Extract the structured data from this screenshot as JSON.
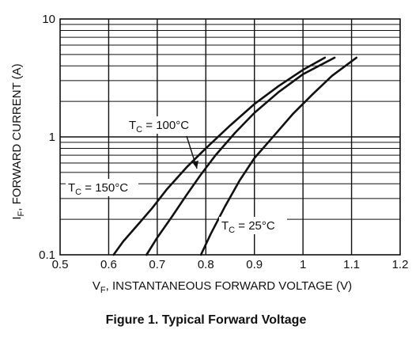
{
  "chart_data": {
    "type": "line",
    "title": "Figure 1. Typical Forward Voltage",
    "xlabel": {
      "symbol": "V",
      "sub": "F",
      "text": ", INSTANTANEOUS FORWARD VOLTAGE (V)"
    },
    "ylabel": {
      "symbol": "I",
      "sub": "F",
      "text": ", FORWARD CURRENT (A)"
    },
    "x_ticks": [
      "0.5",
      "0.6",
      "0.7",
      "0.8",
      "0.9",
      "1",
      "1.1",
      "1.2"
    ],
    "y_ticks": [
      "0.1",
      "1",
      "10"
    ],
    "xlim": [
      0.5,
      1.2
    ],
    "ylim": [
      0.1,
      10
    ],
    "y_scale": "log",
    "grid": true,
    "series": [
      {
        "name": "T_C = 150°C",
        "label": {
          "symbol": "T",
          "sub": "C",
          "text": " = 150°C"
        },
        "x": [
          0.61,
          0.63,
          0.66,
          0.69,
          0.72,
          0.76,
          0.8,
          0.85,
          0.9,
          0.95,
          1.0,
          1.045
        ],
        "y": [
          0.1,
          0.13,
          0.18,
          0.25,
          0.36,
          0.55,
          0.8,
          1.25,
          1.9,
          2.7,
          3.7,
          4.7
        ]
      },
      {
        "name": "T_C = 100°C",
        "label": {
          "symbol": "T",
          "sub": "C",
          "text": " = 100°C"
        },
        "x": [
          0.678,
          0.7,
          0.73,
          0.76,
          0.79,
          0.82,
          0.86,
          0.9,
          0.95,
          1.0,
          1.065
        ],
        "y": [
          0.1,
          0.14,
          0.21,
          0.32,
          0.48,
          0.7,
          1.08,
          1.6,
          2.4,
          3.4,
          4.7
        ]
      },
      {
        "name": "T_C = 25°C",
        "label": {
          "symbol": "T",
          "sub": "C",
          "text": " = 25°C"
        },
        "x": [
          0.79,
          0.81,
          0.84,
          0.87,
          0.9,
          0.94,
          0.98,
          1.02,
          1.06,
          1.11
        ],
        "y": [
          0.1,
          0.15,
          0.26,
          0.43,
          0.66,
          1.02,
          1.58,
          2.3,
          3.3,
          4.7
        ]
      }
    ]
  }
}
